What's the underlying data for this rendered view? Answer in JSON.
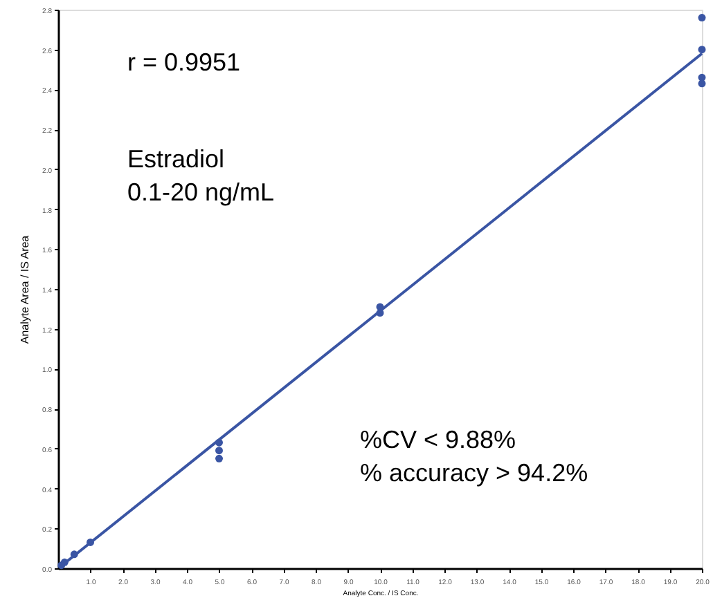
{
  "chart_data": {
    "type": "scatter",
    "xlabel": "Analyte Conc. / IS Conc.",
    "ylabel": "Analyte Area / IS Area",
    "annotations": [
      "r = 0.9951",
      "Estradiol\n0.1-20 ng/mL",
      "%CV < 9.88%\n% accuracy > 94.2%"
    ],
    "series": [
      {
        "color": "#3a55a4",
        "marker": "circle",
        "x": [
          0.1,
          0.2,
          0.5,
          1.0,
          5.0,
          5.0,
          5.0,
          10.0,
          10.0,
          20.0,
          20.0,
          20.0,
          20.0
        ],
        "values": [
          0.015,
          0.03,
          0.07,
          0.13,
          0.63,
          0.59,
          0.55,
          1.31,
          1.28,
          2.76,
          2.6,
          2.46,
          2.43
        ]
      },
      {
        "type": "line",
        "color": "#3a55a4",
        "x": [
          0.1,
          20.0
        ],
        "values": [
          0.012,
          2.58
        ]
      }
    ],
    "xlim": [
      0,
      20.0
    ],
    "xticks": [
      {
        "value": 1,
        "label": "1.0"
      },
      {
        "value": 2,
        "label": "2.0"
      },
      {
        "value": 3,
        "label": "3.0"
      },
      {
        "value": 4,
        "label": "4.0"
      },
      {
        "value": 5,
        "label": "5.0"
      },
      {
        "value": 6,
        "label": "6.0"
      },
      {
        "value": 7,
        "label": "7.0"
      },
      {
        "value": 8,
        "label": "8.0"
      },
      {
        "value": 9,
        "label": "9.0"
      },
      {
        "value": 10,
        "label": "10.0"
      },
      {
        "value": 11,
        "label": "11.0"
      },
      {
        "value": 12,
        "label": "12.0"
      },
      {
        "value": 13,
        "label": "13.0"
      },
      {
        "value": 14,
        "label": "14.0"
      },
      {
        "value": 15,
        "label": "15.0"
      },
      {
        "value": 16,
        "label": "16.0"
      },
      {
        "value": 17,
        "label": "17.0"
      },
      {
        "value": 18,
        "label": "18.0"
      },
      {
        "value": 19,
        "label": "19.0"
      },
      {
        "value": 20,
        "label": "20.0"
      }
    ],
    "ylim": [
      0,
      2.8
    ],
    "yticks": [
      {
        "value": 0,
        "label": "0.0"
      },
      {
        "value": 0.2,
        "label": "0.2"
      },
      {
        "value": 0.4,
        "label": "0.4"
      },
      {
        "value": 0.6,
        "label": "0.6"
      },
      {
        "value": 0.8,
        "label": "0.8"
      },
      {
        "value": 1.0,
        "label": "1.0"
      },
      {
        "value": 1.2,
        "label": "1.2"
      },
      {
        "value": 1.4,
        "label": "1.4"
      },
      {
        "value": 1.6,
        "label": "1.6"
      },
      {
        "value": 1.8,
        "label": "1.8"
      },
      {
        "value": 2.0,
        "label": "2.0"
      },
      {
        "value": 2.2,
        "label": "2.2"
      },
      {
        "value": 2.4,
        "label": "2.4"
      },
      {
        "value": 2.6,
        "label": "2.6"
      },
      {
        "value": 2.8,
        "label": "2.8"
      }
    ],
    "grid": false
  }
}
